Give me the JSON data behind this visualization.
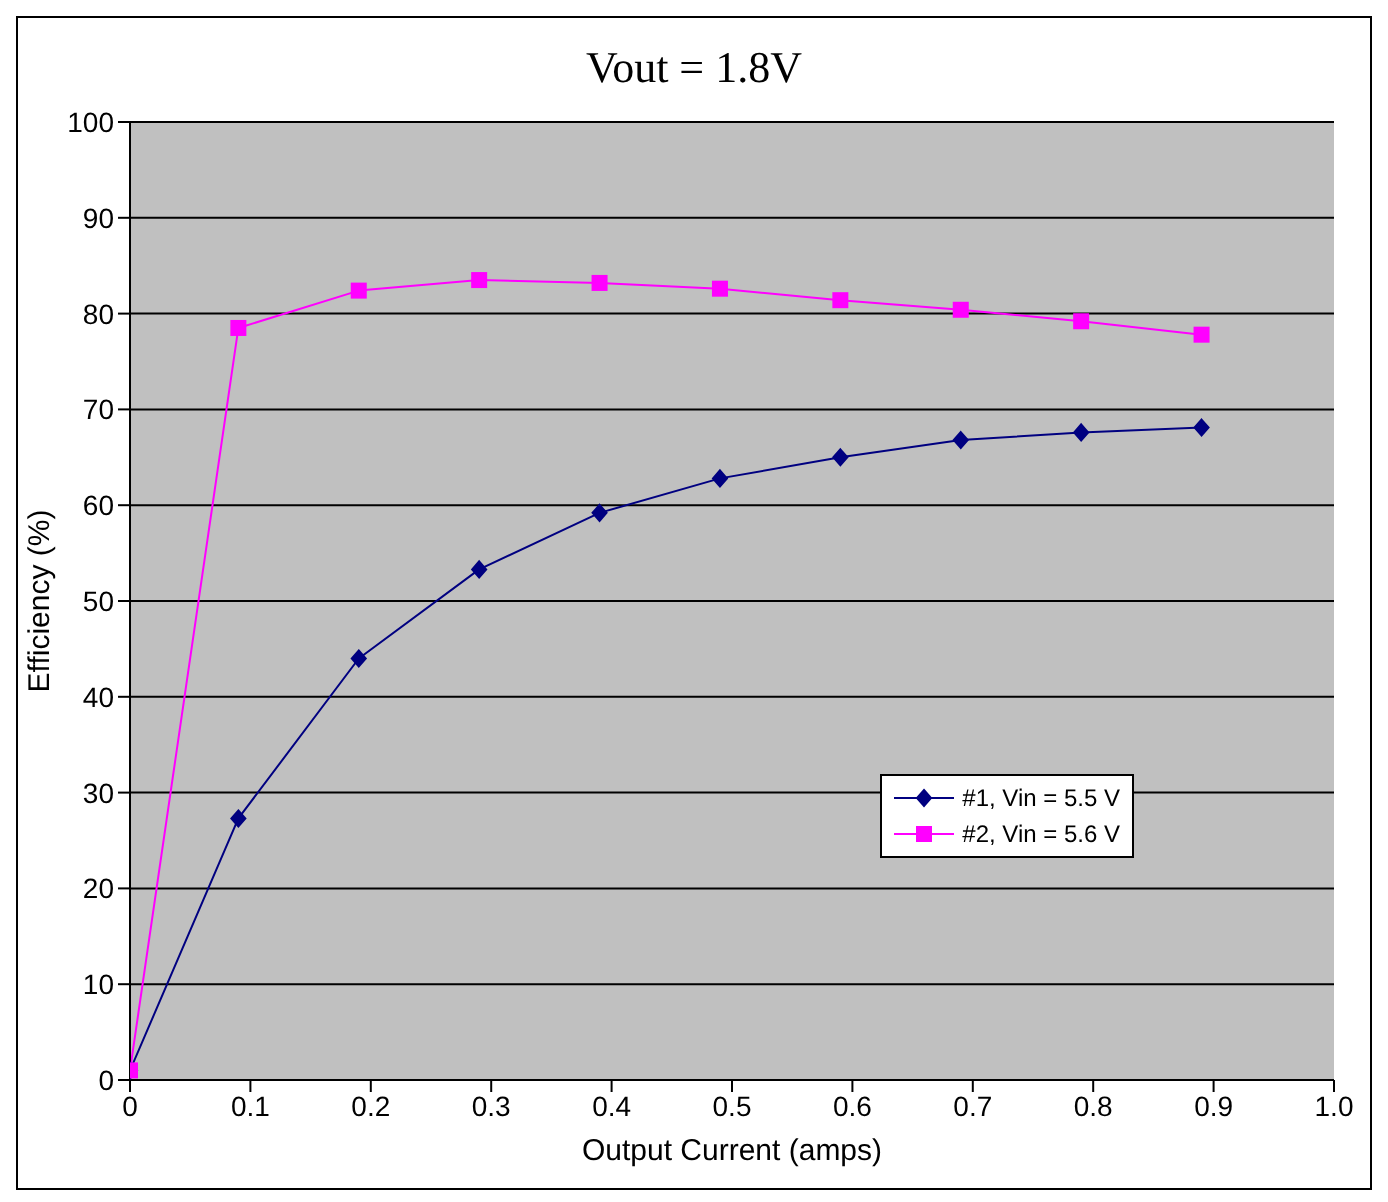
{
  "chart_data": {
    "type": "line",
    "title": "Vout = 1.8V",
    "xlabel": "Output Current (amps)",
    "ylabel": "Efficiency (%)",
    "x": [
      0,
      0.09,
      0.19,
      0.29,
      0.39,
      0.49,
      0.59,
      0.69,
      0.79,
      0.89
    ],
    "series": [
      {
        "name": "#1, Vin = 5.5 V",
        "color": "#000080",
        "marker": "diamond",
        "values": [
          1,
          27.3,
          44.0,
          53.3,
          59.2,
          62.8,
          65.0,
          66.8,
          67.6,
          68.1
        ]
      },
      {
        "name": "#2, Vin = 5.6 V",
        "color": "#ff00ff",
        "marker": "square",
        "values": [
          1,
          78.5,
          82.4,
          83.5,
          83.2,
          82.6,
          81.4,
          80.4,
          79.2,
          77.8
        ]
      }
    ],
    "xlim": [
      0,
      1.0
    ],
    "xticks": [
      0,
      0.1,
      0.2,
      0.3,
      0.4,
      0.5,
      0.6,
      0.7,
      0.8,
      0.9,
      {
        "value": 1.0,
        "label": "1.0"
      }
    ],
    "ylim": [
      0,
      100
    ],
    "yticks": [
      0,
      10,
      20,
      30,
      40,
      50,
      60,
      70,
      80,
      90,
      100
    ],
    "grid": "y",
    "legend": "right",
    "line_style": "solid"
  }
}
